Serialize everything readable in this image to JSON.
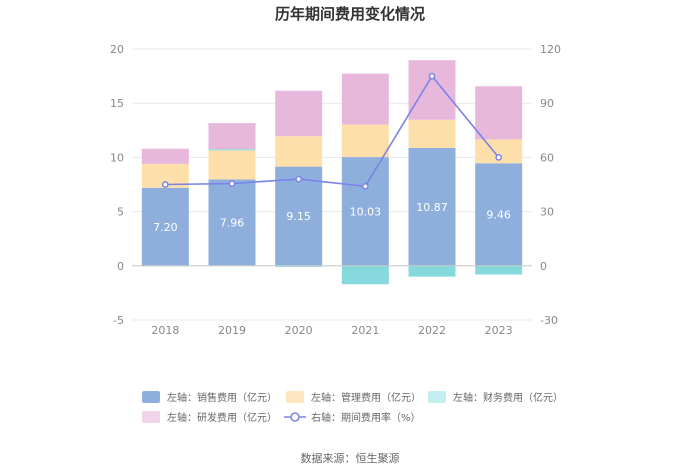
{
  "chart_data": {
    "type": "bar",
    "title": "历年期间费用变化情况",
    "categories": [
      "2018",
      "2019",
      "2020",
      "2021",
      "2022",
      "2023"
    ],
    "stacked": true,
    "left_axis": {
      "ticks": [
        -5,
        0,
        5,
        10,
        15,
        20
      ],
      "ylim": [
        -5,
        20
      ]
    },
    "right_axis": {
      "ticks": [
        -30,
        0,
        30,
        60,
        90,
        120
      ],
      "ylim": [
        -30,
        120
      ]
    },
    "series": [
      {
        "name": "左轴：销售费用（亿元）",
        "axis": "left",
        "kind": "bar",
        "color": "#8eafdc",
        "values": [
          7.2,
          7.96,
          9.15,
          10.03,
          10.87,
          9.46
        ],
        "labels": [
          "7.20",
          "7.96",
          "9.15",
          "10.03",
          "10.87",
          "9.46"
        ]
      },
      {
        "name": "左轴：管理费用（亿元）",
        "axis": "left",
        "kind": "bar",
        "color": "#fddfa9",
        "values": [
          2.2,
          2.7,
          2.8,
          3.0,
          2.6,
          2.2
        ]
      },
      {
        "name": "左轴：财务费用（亿元）",
        "axis": "left",
        "kind": "bar",
        "color": "#85d9dc",
        "values": [
          -0.05,
          0.1,
          -0.1,
          -1.7,
          -1.0,
          -0.8
        ]
      },
      {
        "name": "左轴：研发费用（亿元）",
        "axis": "left",
        "kind": "bar",
        "color": "#e7b8dc",
        "values": [
          1.4,
          2.4,
          4.2,
          4.7,
          5.5,
          4.9
        ]
      },
      {
        "name": "右轴：期间费用率（%）",
        "axis": "right",
        "kind": "line",
        "color": "#7b83e8",
        "values": [
          45,
          45.5,
          48,
          44,
          105,
          60
        ]
      }
    ]
  },
  "source": "数据来源：恒生聚源"
}
